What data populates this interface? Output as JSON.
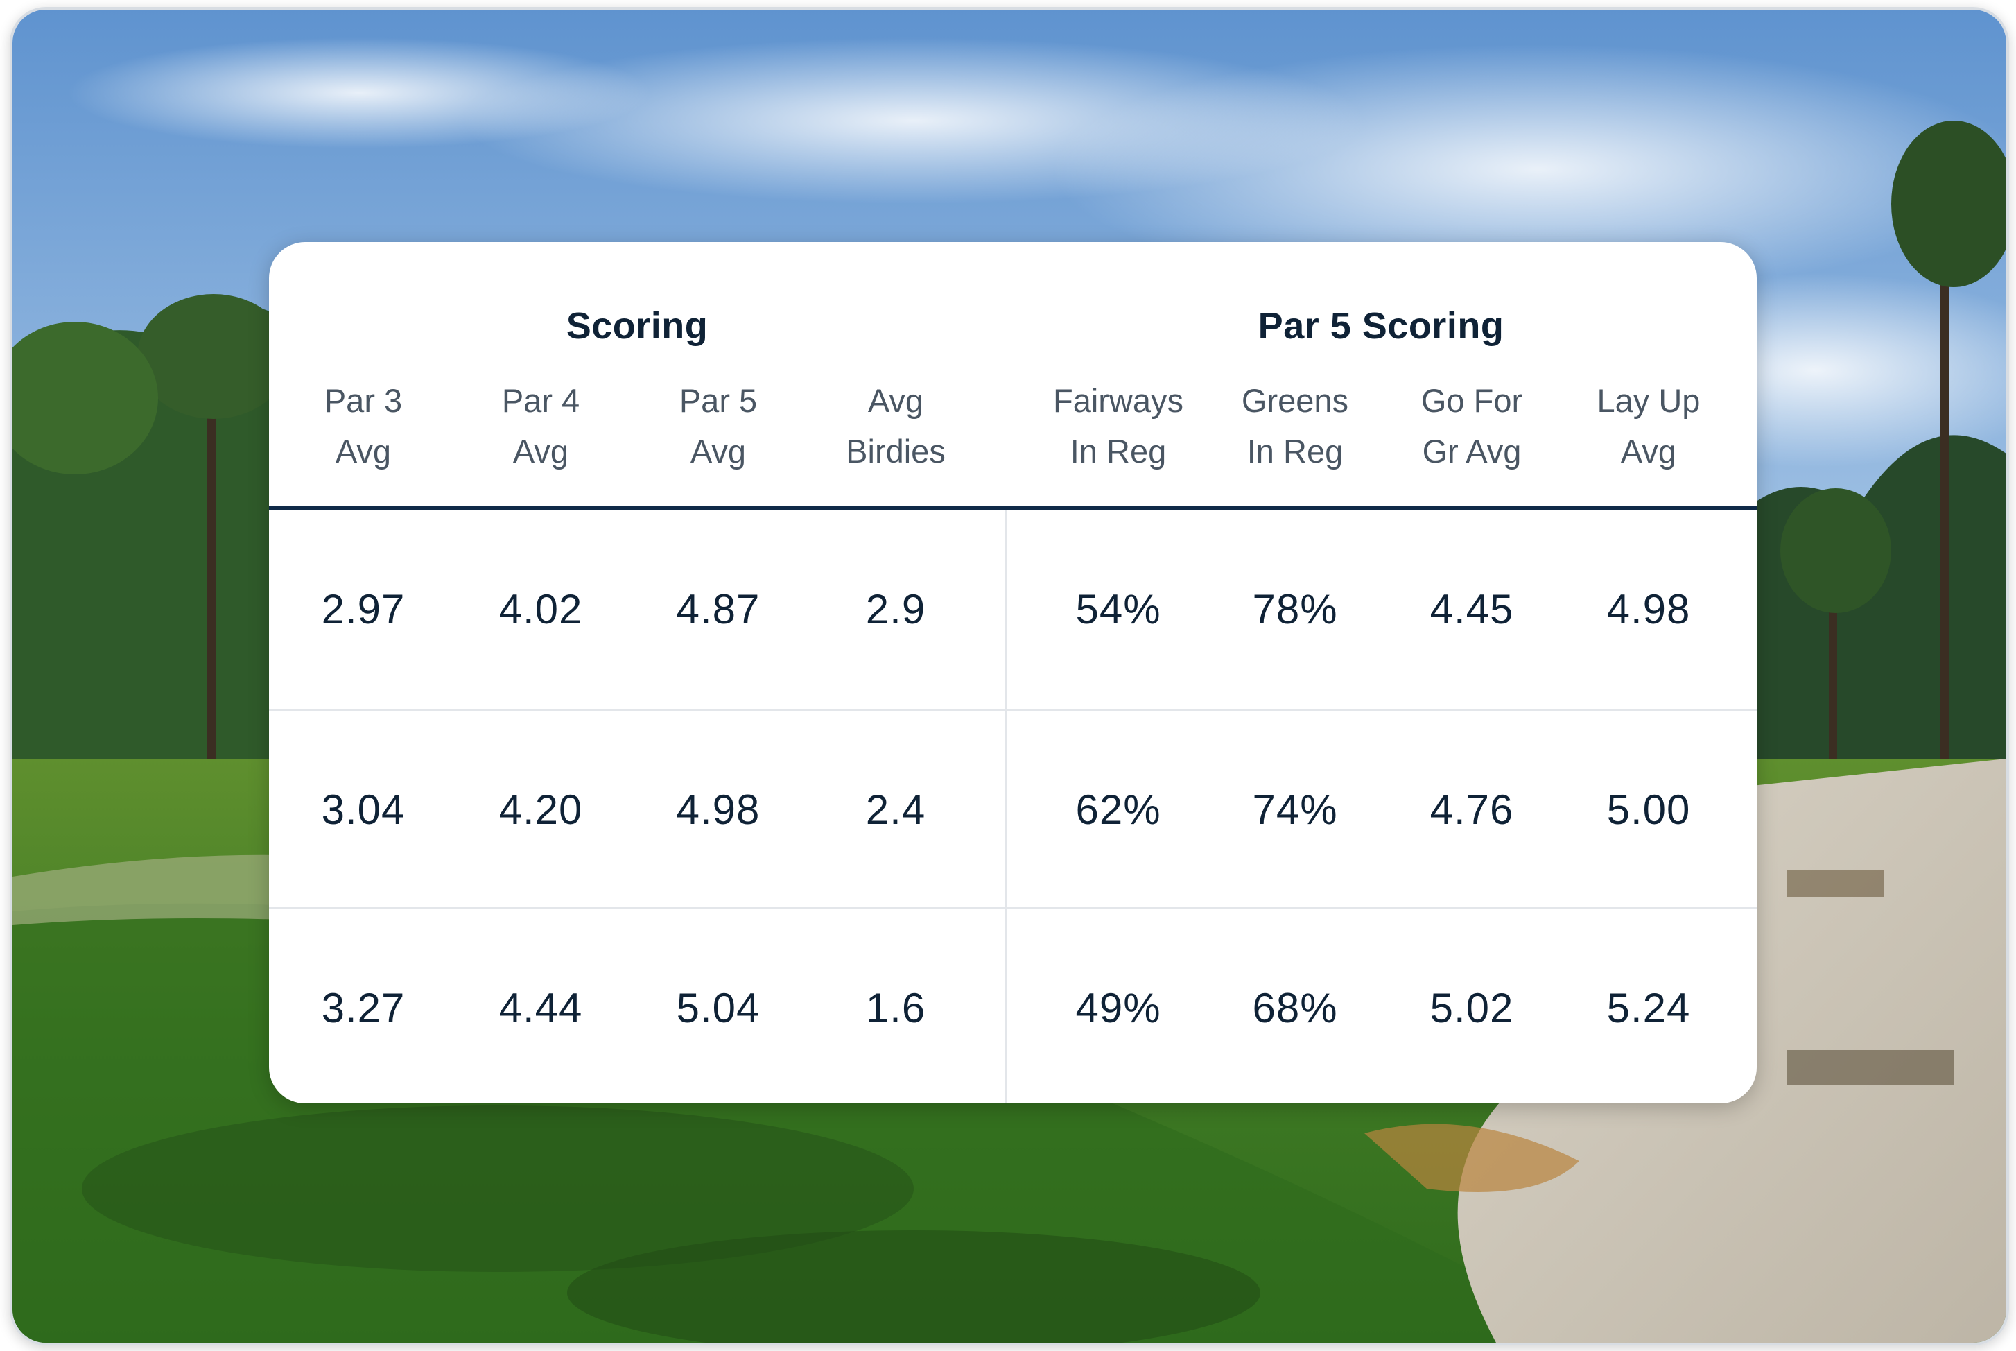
{
  "groups": {
    "scoring": "Scoring",
    "par5_scoring": "Par 5 Scoring"
  },
  "columns": [
    {
      "line1": "Par 3",
      "line2": "Avg"
    },
    {
      "line1": "Par 4",
      "line2": "Avg"
    },
    {
      "line1": "Par 5",
      "line2": "Avg"
    },
    {
      "line1": "Avg",
      "line2": "Birdies"
    },
    {
      "line1": "Fairways",
      "line2": "In Reg"
    },
    {
      "line1": "Greens",
      "line2": "In Reg"
    },
    {
      "line1": "Go For",
      "line2": "Gr Avg"
    },
    {
      "line1": "Lay Up",
      "line2": "Avg"
    }
  ],
  "rows": [
    [
      "2.97",
      "4.02",
      "4.87",
      "2.9",
      "54%",
      "78%",
      "4.45",
      "4.98"
    ],
    [
      "3.04",
      "4.20",
      "4.98",
      "2.4",
      "62%",
      "74%",
      "4.76",
      "5.00"
    ],
    [
      "3.27",
      "4.44",
      "5.04",
      "1.6",
      "49%",
      "68%",
      "5.02",
      "5.24"
    ]
  ],
  "colors": {
    "header_rule": "#0f2a48",
    "text": "#0f2236",
    "subtext": "#4a5663",
    "divider": "#e3e6ea"
  }
}
